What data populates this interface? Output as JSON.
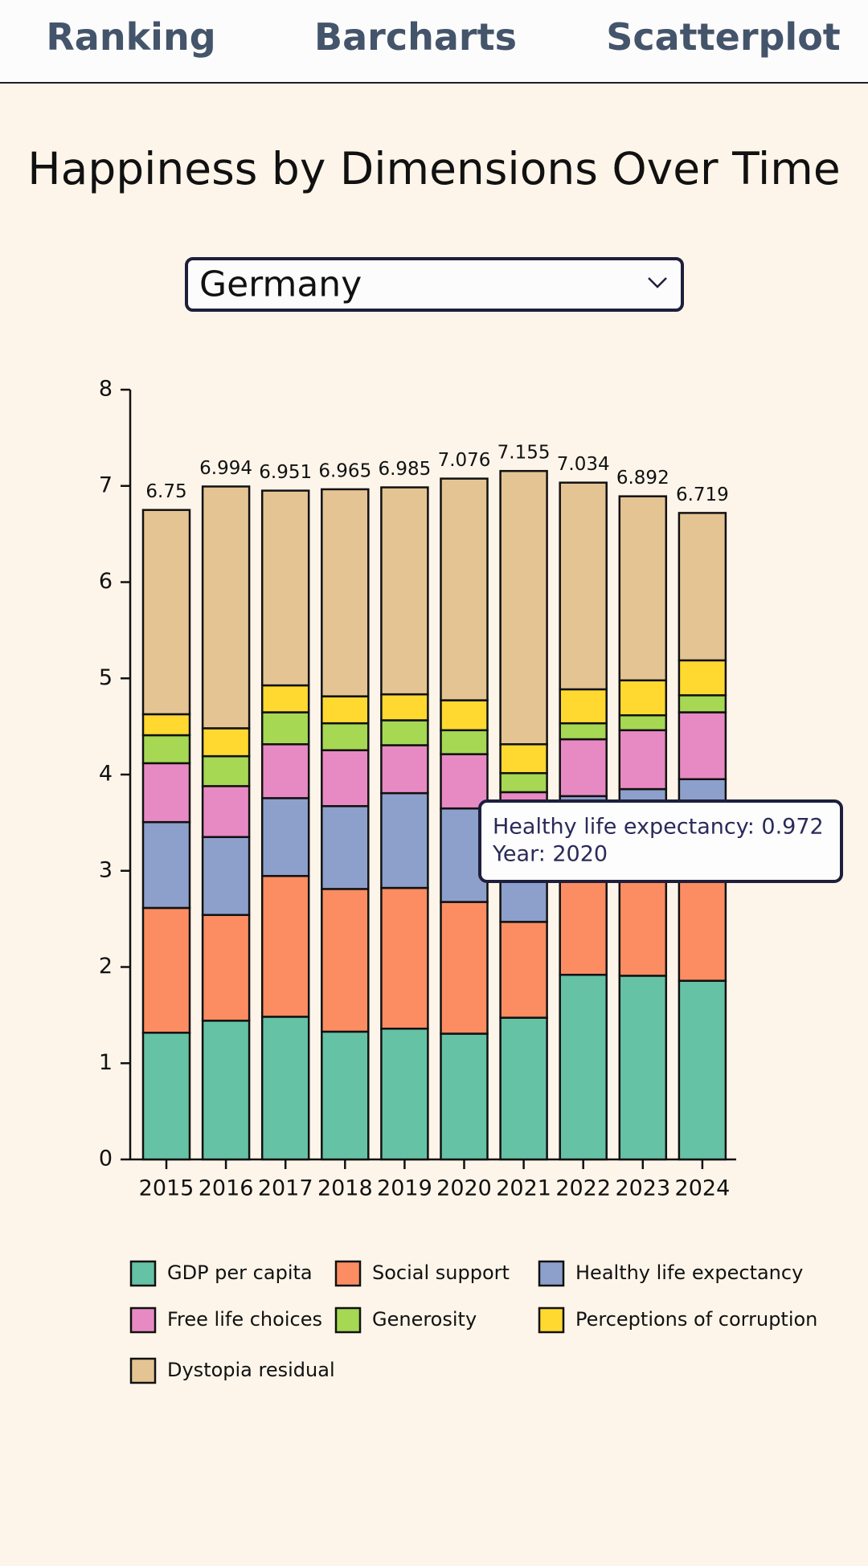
{
  "nav": [
    "Ranking",
    "Barcharts",
    "Scatterplot"
  ],
  "dropdown": "Germany",
  "chart_data": {
    "type": "stacked_bar",
    "title": "Happiness by Dimensions Over Time",
    "categories": [
      "2015",
      "2016",
      "2017",
      "2018",
      "2019",
      "2020",
      "2021",
      "2022",
      "2023",
      "2024"
    ],
    "series": [
      {
        "name": "GDP per capita",
        "color": "#66c2a5",
        "values": [
          1.317,
          1.442,
          1.483,
          1.328,
          1.359,
          1.307,
          1.473,
          1.919,
          1.909,
          1.857
        ]
      },
      {
        "name": "Social support",
        "color": "#fc8d62",
        "values": [
          1.297,
          1.099,
          1.463,
          1.483,
          1.463,
          1.369,
          0.996,
          1.1,
          1.16,
          1.2
        ]
      },
      {
        "name": "Healthy life expectancy",
        "color": "#8da0cb",
        "values": [
          0.892,
          0.81,
          0.809,
          0.861,
          0.985,
          0.972,
          0.798,
          0.757,
          0.78,
          0.895
        ]
      },
      {
        "name": "Free life choices",
        "color": "#e78ac3",
        "values": [
          0.612,
          0.529,
          0.56,
          0.581,
          0.498,
          0.564,
          0.55,
          0.591,
          0.612,
          0.695
        ]
      },
      {
        "name": "Generosity",
        "color": "#a6d854",
        "values": [
          0.291,
          0.311,
          0.332,
          0.28,
          0.259,
          0.249,
          0.198,
          0.166,
          0.155,
          0.177
        ]
      },
      {
        "name": "Perceptions of corruption",
        "color": "#ffd92f",
        "values": [
          0.218,
          0.29,
          0.28,
          0.28,
          0.27,
          0.311,
          0.3,
          0.353,
          0.363,
          0.363
        ]
      },
      {
        "name": "Dystopia residual",
        "color": "#e5c494",
        "values": [
          2.123,
          2.513,
          2.024,
          2.152,
          2.151,
          2.304,
          2.84,
          2.148,
          1.913,
          1.532
        ]
      }
    ],
    "totals": [
      6.75,
      6.994,
      6.951,
      6.965,
      6.985,
      7.076,
      7.155,
      7.034,
      6.892,
      6.719
    ],
    "ylim": [
      0,
      8
    ],
    "yticks": [
      0,
      1,
      2,
      3,
      4,
      5,
      6,
      7,
      8
    ],
    "grid": false,
    "legend": "bottom",
    "tooltip": [
      "Healthy life expectancy: 0.972",
      "Year: 2020"
    ]
  }
}
